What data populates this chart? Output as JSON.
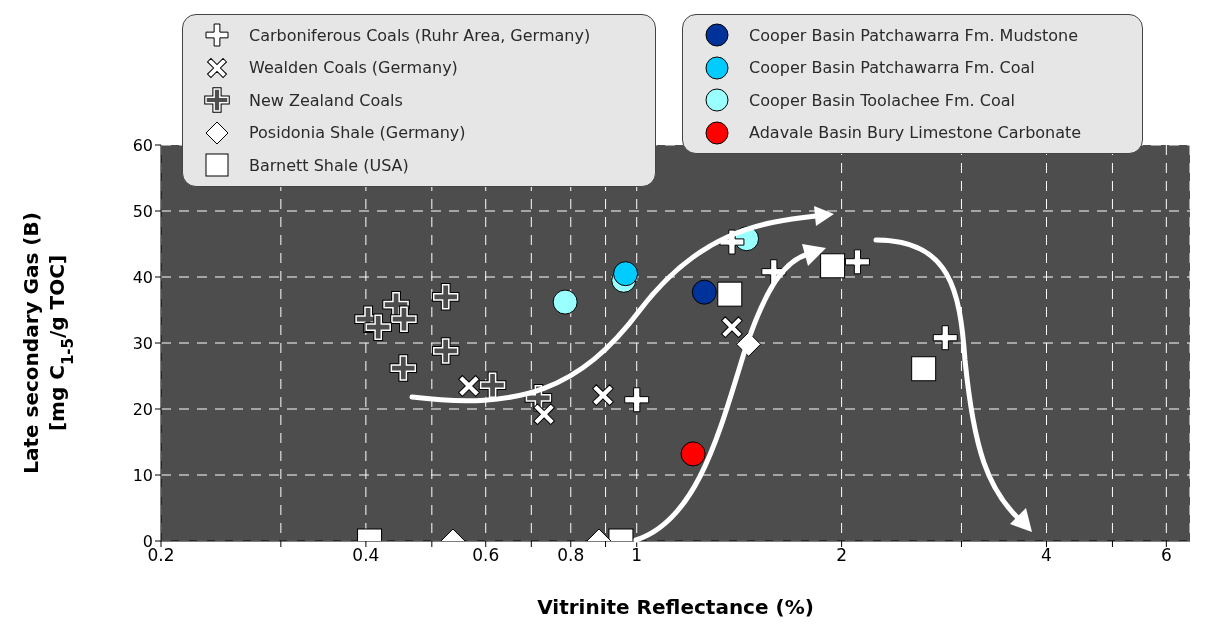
{
  "chart_data": {
    "type": "scatter",
    "xlabel": "Vitrinite Reflectance (%)",
    "ylabel": "Late secondary Gas (B)\n[mg C$_{1-5}$/g TOC]",
    "log": "x",
    "xlim": [
      0.2,
      6.5
    ],
    "xticks": [
      0.2,
      {
        "value": 0.3,
        "label": null
      },
      0.4,
      {
        "value": 0.5,
        "label": null
      },
      0.6,
      {
        "value": 0.7,
        "label": null
      },
      0.8,
      {
        "value": 0.9,
        "label": null
      },
      1,
      2,
      {
        "value": 3,
        "label": null
      },
      4,
      {
        "value": 5,
        "label": null
      },
      6
    ],
    "ylim": [
      0,
      60
    ],
    "yticks": [
      0,
      10,
      20,
      30,
      40,
      50,
      60
    ],
    "grid": true,
    "legend": "top",
    "series": [
      {
        "name": "Carboniferous Coals (Ruhr Area, Germany)",
        "color": "#ffffff",
        "marker": "cross",
        "x": [
          1.0,
          1.38,
          1.59,
          2.11,
          2.84
        ],
        "values": [
          21.4,
          45.3,
          40.8,
          42.3,
          30.8
        ]
      },
      {
        "name": "Wealden Coals (Germany)",
        "color": "#ffffff",
        "marker": "x",
        "x": [
          0.567,
          0.731,
          0.892,
          1.38
        ],
        "values": [
          23.5,
          19.2,
          22.1,
          32.4
        ]
      },
      {
        "name": "New Zealand Coals",
        "color": "#ffffff",
        "marker": "cross",
        "line_style": "dashed",
        "x": [
          0.403,
          0.443,
          0.455,
          0.417,
          0.524,
          0.524,
          0.454,
          0.614,
          0.717
        ],
        "values": [
          33.6,
          35.8,
          33.6,
          32.4,
          37.0,
          28.8,
          26.2,
          23.6,
          21.7
        ]
      },
      {
        "name": "Posidonia Shale (Germany)",
        "color": "#ffffff",
        "marker": "diamond",
        "x": [
          0.537,
          0.88,
          1.46
        ],
        "values": [
          0,
          0,
          29.8
        ]
      },
      {
        "name": "Barnett Shale (USA)",
        "color": "#ffffff",
        "marker": "square",
        "x": [
          0.405,
          0.948,
          1.37,
          1.94,
          2.64
        ],
        "values": [
          0,
          0,
          37.4,
          41.7,
          26.1
        ]
      },
      {
        "name": "Cooper Basin Patchawarra Fm. Mudstone",
        "color": "#003399",
        "marker": "circle",
        "x": [
          1.257
        ],
        "values": [
          37.7
        ]
      },
      {
        "name": "Cooper Basin Patchawarra Fm. Coal",
        "color": "#00ccff",
        "marker": "circle",
        "x": [
          0.963
        ],
        "values": [
          40.5
        ]
      },
      {
        "name": "Cooper Basin Toolachee Fm. Coal",
        "color": "#99ffff",
        "marker": "circle",
        "x": [
          0.957,
          0.785,
          1.45
        ],
        "values": [
          39.5,
          36.2,
          45.8
        ]
      },
      {
        "name": "Adavale Basin Bury Limestone Carbonate",
        "color": "#ff0000",
        "marker": "circle",
        "x": [
          1.21
        ],
        "values": [
          13.2
        ]
      }
    ]
  }
}
